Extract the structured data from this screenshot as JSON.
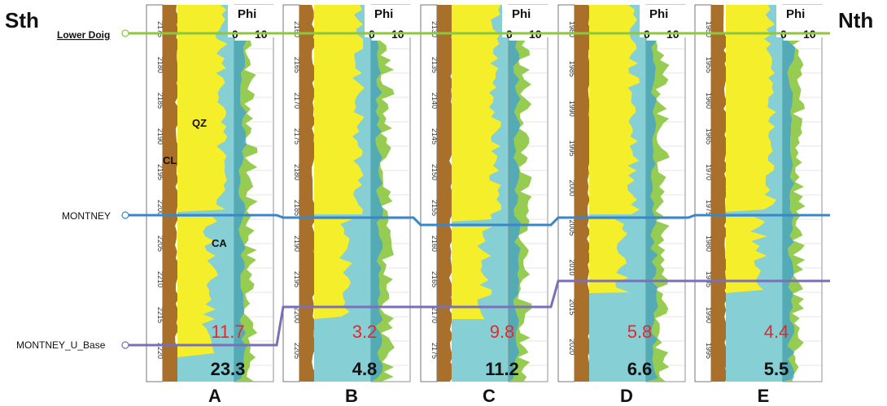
{
  "section": {
    "left_label": "Sth",
    "right_label": "Nth"
  },
  "horizons": [
    {
      "name": "Lower Doig",
      "color": "#8dc63f"
    },
    {
      "name": "MONTNEY",
      "color": "#3a86c8"
    },
    {
      "name": "MONTNEY_U_Base",
      "color": "#7b6fb8"
    }
  ],
  "track_header": {
    "title": "Phi",
    "scale_min": "0",
    "scale_max": "10"
  },
  "lithology_labels": {
    "clay": "CL",
    "quartz": "QZ",
    "carbonate": "CA"
  },
  "colors": {
    "clay": "#a8702a",
    "quartz": "#f5ee2a",
    "carbonate": "#86cfd4",
    "porosity_green": "#8cc63f",
    "porosity_blue": "#3da0d8",
    "porosity_purple": "#4b3a9a"
  },
  "wells": [
    {
      "id": "A",
      "upper_value": "11.7",
      "lower_value": "23.3",
      "depth_ticks": [
        "2175",
        "2180",
        "2185",
        "2190",
        "2195",
        "2200",
        "2205",
        "2210",
        "2215",
        "2220"
      ]
    },
    {
      "id": "B",
      "upper_value": "3.2",
      "lower_value": "4.8",
      "depth_ticks": [
        "2160",
        "2165",
        "2170",
        "2175",
        "2180",
        "2185",
        "2190",
        "2195",
        "2200",
        "2205"
      ]
    },
    {
      "id": "C",
      "upper_value": "9.8",
      "lower_value": "11.2",
      "depth_ticks": [
        "2130",
        "2135",
        "2140",
        "2145",
        "2150",
        "2155",
        "2160",
        "2165",
        "2170",
        "2175"
      ]
    },
    {
      "id": "D",
      "upper_value": "5.8",
      "lower_value": "6.6",
      "depth_ticks": [
        "1980",
        "1985",
        "1990",
        "1995",
        "2000",
        "2005",
        "2010",
        "2015",
        "2020"
      ]
    },
    {
      "id": "E",
      "upper_value": "4.4",
      "lower_value": "5.5",
      "depth_ticks": [
        "1950",
        "1955",
        "1960",
        "1965",
        "1970",
        "1975",
        "1980",
        "1985",
        "1990",
        "1995"
      ]
    }
  ]
}
